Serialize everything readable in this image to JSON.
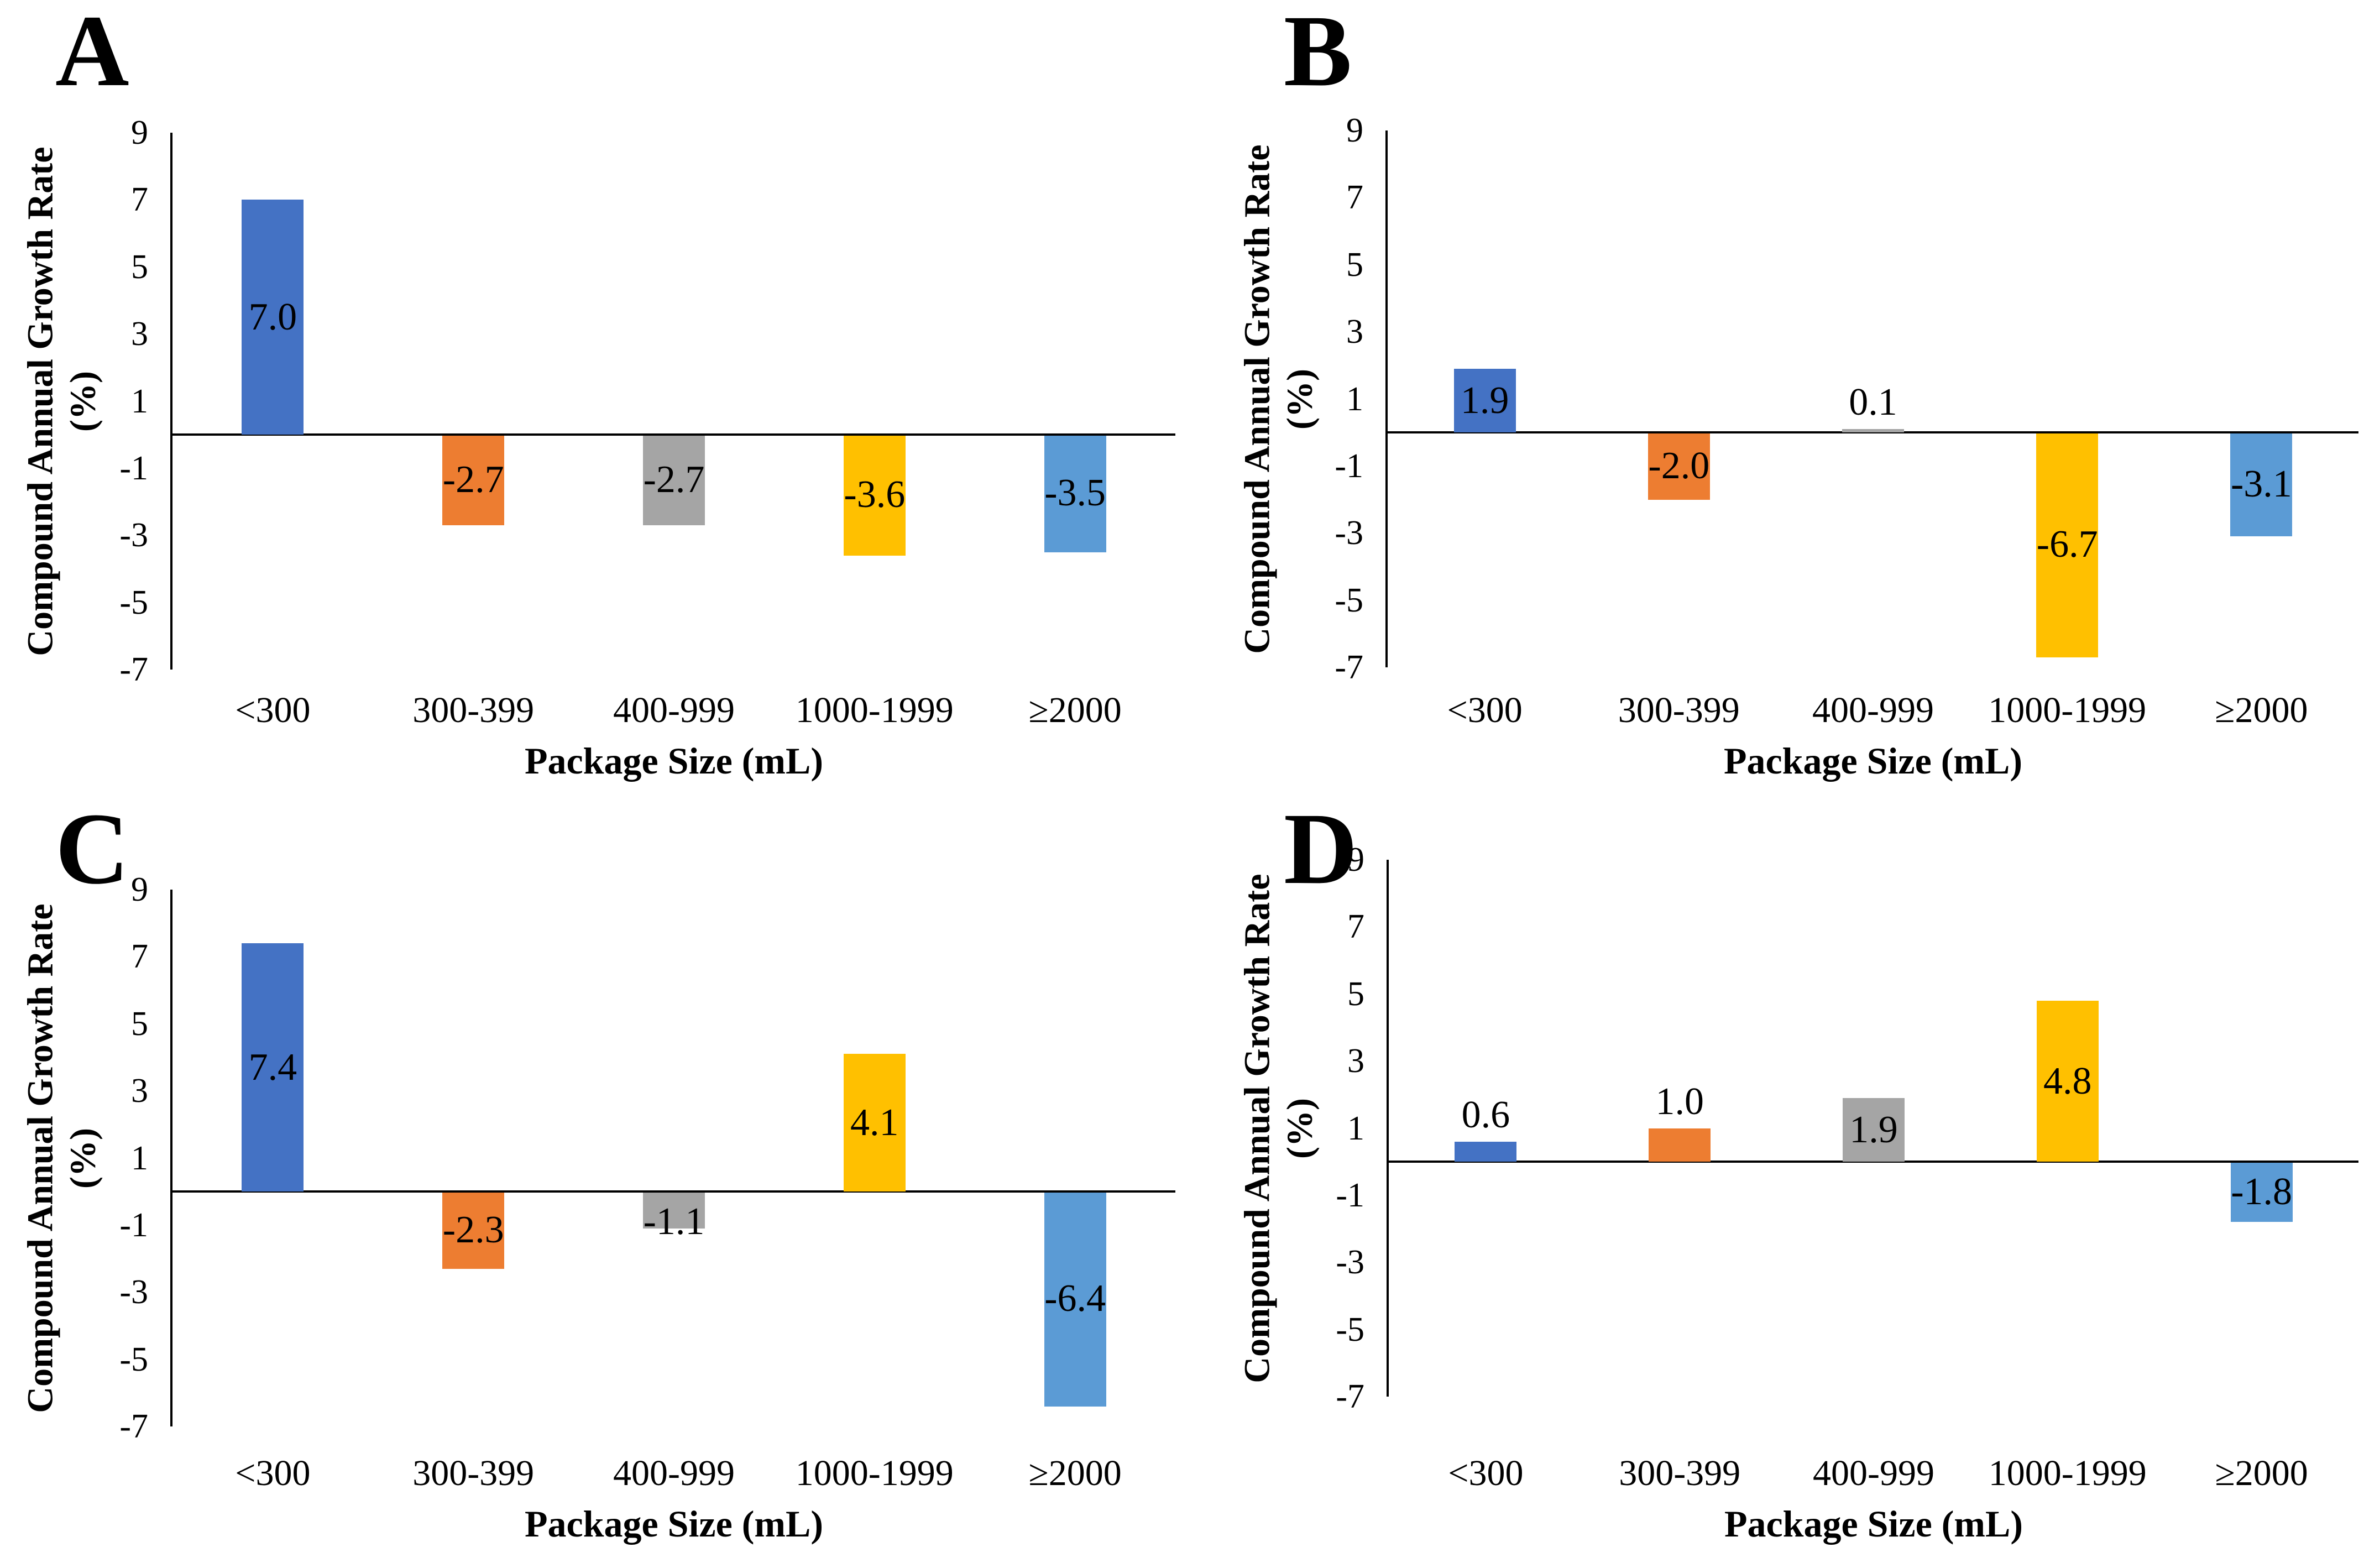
{
  "figure": {
    "background_color": "#FFFFFF",
    "text_color": "#000000",
    "panel_letters": [
      "A",
      "B",
      "C",
      "D"
    ]
  },
  "chart_data": [
    {
      "type": "bar",
      "panel": "A",
      "categories": [
        "<300",
        "300-399",
        "400-999",
        "1000-1999",
        "≥2000"
      ],
      "values": [
        7.0,
        -2.7,
        -2.7,
        -3.6,
        -3.5
      ],
      "value_labels": [
        "7.0",
        "-2.7",
        "-2.7",
        "-3.6",
        "-3.5"
      ],
      "xlabel": "Package Size (mL)",
      "ylabel": "Compound Annual Growth Rate",
      "ylabel_line2": "(%)",
      "yticks": [
        9,
        7,
        5,
        3,
        1,
        -1,
        -3,
        -5,
        -7
      ],
      "ylim": [
        -7,
        9
      ],
      "bar_colors": [
        "#4472C4",
        "#ED7D31",
        "#A5A5A5",
        "#FFC000",
        "#5B9BD5"
      ],
      "grid": false,
      "legend": null
    },
    {
      "type": "bar",
      "panel": "B",
      "categories": [
        "<300",
        "300-399",
        "400-999",
        "1000-1999",
        "≥2000"
      ],
      "values": [
        1.9,
        -2.0,
        0.1,
        -6.7,
        -3.1
      ],
      "value_labels": [
        "1.9",
        "-2.0",
        "0.1",
        "-6.7",
        "-3.1"
      ],
      "xlabel": "Package Size (mL)",
      "ylabel": "Compound Annual Growth Rate",
      "ylabel_line2": "(%)",
      "yticks": [
        9,
        7,
        5,
        3,
        1,
        -1,
        -3,
        -5,
        -7
      ],
      "ylim": [
        -7,
        9
      ],
      "bar_colors": [
        "#4472C4",
        "#ED7D31",
        "#A5A5A5",
        "#FFC000",
        "#5B9BD5"
      ],
      "grid": false,
      "legend": null
    },
    {
      "type": "bar",
      "panel": "C",
      "categories": [
        "<300",
        "300-399",
        "400-999",
        "1000-1999",
        "≥2000"
      ],
      "values": [
        7.4,
        -2.3,
        -1.1,
        4.1,
        -6.4
      ],
      "value_labels": [
        "7.4",
        "-2.3",
        "-1.1",
        "4.1",
        "-6.4"
      ],
      "xlabel": "Package Size (mL)",
      "ylabel": "Compound Annual Growth Rate",
      "ylabel_line2": "(%)",
      "yticks": [
        9,
        7,
        5,
        3,
        1,
        -1,
        -3,
        -5,
        -7
      ],
      "ylim": [
        -7,
        9
      ],
      "bar_colors": [
        "#4472C4",
        "#ED7D31",
        "#A5A5A5",
        "#FFC000",
        "#5B9BD5"
      ],
      "grid": false,
      "legend": null
    },
    {
      "type": "bar",
      "panel": "D",
      "categories": [
        "<300",
        "300-399",
        "400-999",
        "1000-1999",
        "≥2000"
      ],
      "values": [
        0.6,
        1.0,
        1.9,
        4.8,
        -1.8
      ],
      "value_labels": [
        "0.6",
        "1.0",
        "1.9",
        "4.8",
        "-1.8"
      ],
      "xlabel": "Package Size (mL)",
      "ylabel": "Compound Annual Growth Rate",
      "ylabel_line2": "(%)",
      "yticks": [
        9,
        7,
        5,
        3,
        1,
        -1,
        -3,
        -5,
        -7
      ],
      "ylim": [
        -7,
        9
      ],
      "bar_colors": [
        "#4472C4",
        "#ED7D31",
        "#A5A5A5",
        "#FFC000",
        "#5B9BD5"
      ],
      "grid": false,
      "legend": null
    }
  ]
}
